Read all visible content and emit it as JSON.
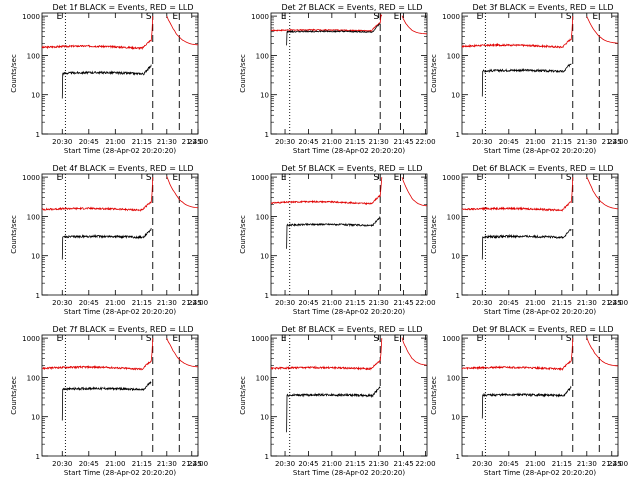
{
  "figure": {
    "series_names": [
      "BLACK = Events",
      "RED = LLD"
    ],
    "colors": {
      "events": "#000000",
      "lld": "#e00000",
      "axes": "#000000",
      "background": "#ffffff"
    }
  },
  "chart_data": [
    {
      "type": "line",
      "title": "Det 1f BLACK = Events, RED = LLD",
      "xlabel": "Start Time (28-Apr-02 20:20:20)",
      "ylabel": "Counts/sec",
      "yscale": "log",
      "ylim": [
        1,
        1200
      ],
      "xlim": [
        0,
        100
      ],
      "xticks": [
        {
          "v": 13,
          "label": "20:30"
        },
        {
          "v": 30,
          "label": "20:45"
        },
        {
          "v": 47,
          "label": "21:00"
        },
        {
          "v": 64,
          "label": "21:15"
        },
        {
          "v": 80,
          "label": "21:30"
        },
        {
          "v": 96,
          "label": "21:45"
        },
        {
          "v": 100,
          "label": "22:00"
        }
      ],
      "yticks": [
        {
          "v": 1,
          "label": "1"
        },
        {
          "v": 10,
          "label": "10"
        },
        {
          "v": 100,
          "label": "100"
        },
        {
          "v": 1000,
          "label": "1000"
        }
      ],
      "markers": [
        {
          "x": 15,
          "style": "dotted",
          "label": "E"
        },
        {
          "x": 71,
          "style": "dashed",
          "label": "S"
        },
        {
          "x": 88,
          "style": "dashed",
          "label": "E"
        }
      ],
      "series": [
        {
          "name": "Events",
          "start": 13,
          "end": 70,
          "base": 35,
          "first": 8
        },
        {
          "name": "LLD",
          "start": 0,
          "end": 70,
          "base": 160
        }
      ],
      "recovery": {
        "start": 80,
        "end": 100,
        "peak": 1000,
        "lld_end": 180
      },
      "noise": 0.05,
      "hump": 0.1
    },
    {
      "type": "line",
      "title": "Det 2f BLACK = Events, RED = LLD",
      "xlabel": "Start Time (28-Apr-02 20:20:20)",
      "ylabel": "Counts/sec",
      "yscale": "log",
      "ylim": [
        1,
        1200
      ],
      "xlim": [
        0,
        100
      ],
      "xticks": [
        {
          "v": 9,
          "label": "20:30"
        },
        {
          "v": 24,
          "label": "20:45"
        },
        {
          "v": 39,
          "label": "21:00"
        },
        {
          "v": 54,
          "label": "21:15"
        },
        {
          "v": 69,
          "label": "21:30"
        },
        {
          "v": 85,
          "label": "21:45"
        },
        {
          "v": 99,
          "label": "22:00"
        }
      ],
      "yticks": [
        {
          "v": 1,
          "label": "1"
        },
        {
          "v": 10,
          "label": "10"
        },
        {
          "v": 100,
          "label": "100"
        },
        {
          "v": 1000,
          "label": "1000"
        }
      ],
      "markers": [
        {
          "x": 12,
          "style": "dotted",
          "label": "E"
        },
        {
          "x": 70,
          "style": "dashed",
          "label": "S"
        },
        {
          "x": 83,
          "style": "dashed",
          "label": "E"
        }
      ],
      "series": [
        {
          "name": "Events",
          "start": 10,
          "end": 70,
          "base": 400,
          "first": 180
        },
        {
          "name": "LLD",
          "start": 0,
          "end": 70,
          "base": 430
        }
      ],
      "recovery": {
        "start": 84,
        "end": 100,
        "peak": 1000,
        "lld_end": 350
      },
      "noise": 0.03,
      "hump": 0.05
    },
    {
      "type": "line",
      "title": "Det 3f BLACK = Events, RED = LLD",
      "xlabel": "Start Time (28-Apr-02 20:20:20)",
      "ylabel": "Counts/sec",
      "yscale": "log",
      "ylim": [
        1,
        1200
      ],
      "xlim": [
        0,
        100
      ],
      "xticks": [
        {
          "v": 13,
          "label": "20:30"
        },
        {
          "v": 30,
          "label": "20:45"
        },
        {
          "v": 47,
          "label": "21:00"
        },
        {
          "v": 64,
          "label": "21:15"
        },
        {
          "v": 80,
          "label": "21:30"
        },
        {
          "v": 96,
          "label": "21:45"
        },
        {
          "v": 100,
          "label": "22:00"
        }
      ],
      "yticks": [
        {
          "v": 1,
          "label": "1"
        },
        {
          "v": 10,
          "label": "10"
        },
        {
          "v": 100,
          "label": "100"
        },
        {
          "v": 1000,
          "label": "1000"
        }
      ],
      "markers": [
        {
          "x": 15,
          "style": "dotted",
          "label": "E"
        },
        {
          "x": 71,
          "style": "dashed",
          "label": "S"
        },
        {
          "x": 88,
          "style": "dashed",
          "label": "E"
        }
      ],
      "series": [
        {
          "name": "Events",
          "start": 13,
          "end": 70,
          "base": 40,
          "first": 9
        },
        {
          "name": "LLD",
          "start": 0,
          "end": 70,
          "base": 170
        }
      ],
      "recovery": {
        "start": 80,
        "end": 100,
        "peak": 1000,
        "lld_end": 200
      },
      "noise": 0.05,
      "hump": 0.1
    },
    {
      "type": "line",
      "title": "Det 4f BLACK = Events, RED = LLD",
      "xlabel": "Start Time (28-Apr-02 20:20:20)",
      "ylabel": "Counts/sec",
      "yscale": "log",
      "ylim": [
        1,
        1200
      ],
      "xlim": [
        0,
        100
      ],
      "xticks": [
        {
          "v": 13,
          "label": "20:30"
        },
        {
          "v": 30,
          "label": "20:45"
        },
        {
          "v": 47,
          "label": "21:00"
        },
        {
          "v": 64,
          "label": "21:15"
        },
        {
          "v": 80,
          "label": "21:30"
        },
        {
          "v": 96,
          "label": "21:45"
        },
        {
          "v": 100,
          "label": "22:00"
        }
      ],
      "yticks": [
        {
          "v": 1,
          "label": "1"
        },
        {
          "v": 10,
          "label": "10"
        },
        {
          "v": 100,
          "label": "100"
        },
        {
          "v": 1000,
          "label": "1000"
        }
      ],
      "markers": [
        {
          "x": 15,
          "style": "dotted",
          "label": "E"
        },
        {
          "x": 71,
          "style": "dashed",
          "label": "S"
        },
        {
          "x": 88,
          "style": "dashed",
          "label": "E"
        }
      ],
      "series": [
        {
          "name": "Events",
          "start": 13,
          "end": 70,
          "base": 30,
          "first": 8
        },
        {
          "name": "LLD",
          "start": 0,
          "end": 70,
          "base": 150
        }
      ],
      "recovery": {
        "start": 80,
        "end": 100,
        "peak": 1000,
        "lld_end": 160
      },
      "noise": 0.05,
      "hump": 0.08
    },
    {
      "type": "line",
      "title": "Det 5f BLACK = Events, RED = LLD",
      "xlabel": "Start Time (28-Apr-02 20:20:20)",
      "ylabel": "Counts/sec",
      "yscale": "log",
      "ylim": [
        1,
        1200
      ],
      "xlim": [
        0,
        100
      ],
      "xticks": [
        {
          "v": 9,
          "label": "20:30"
        },
        {
          "v": 24,
          "label": "20:45"
        },
        {
          "v": 39,
          "label": "21:00"
        },
        {
          "v": 54,
          "label": "21:15"
        },
        {
          "v": 69,
          "label": "21:30"
        },
        {
          "v": 85,
          "label": "21:45"
        },
        {
          "v": 99,
          "label": "22:00"
        }
      ],
      "yticks": [
        {
          "v": 1,
          "label": "1"
        },
        {
          "v": 10,
          "label": "10"
        },
        {
          "v": 100,
          "label": "100"
        },
        {
          "v": 1000,
          "label": "1000"
        }
      ],
      "markers": [
        {
          "x": 12,
          "style": "dotted",
          "label": "E"
        },
        {
          "x": 70,
          "style": "dashed",
          "label": "S"
        },
        {
          "x": 83,
          "style": "dashed",
          "label": "E"
        }
      ],
      "series": [
        {
          "name": "Events",
          "start": 10,
          "end": 70,
          "base": 60,
          "first": 15
        },
        {
          "name": "LLD",
          "start": 0,
          "end": 70,
          "base": 220
        }
      ],
      "recovery": {
        "start": 84,
        "end": 100,
        "peak": 1000,
        "lld_end": 180
      },
      "noise": 0.04,
      "hump": 0.1
    },
    {
      "type": "line",
      "title": "Det 6f BLACK = Events, RED = LLD",
      "xlabel": "Start Time (28-Apr-02 20:20:20)",
      "ylabel": "Counts/sec",
      "yscale": "log",
      "ylim": [
        1,
        1200
      ],
      "xlim": [
        0,
        100
      ],
      "xticks": [
        {
          "v": 13,
          "label": "20:30"
        },
        {
          "v": 30,
          "label": "20:45"
        },
        {
          "v": 47,
          "label": "21:00"
        },
        {
          "v": 64,
          "label": "21:15"
        },
        {
          "v": 80,
          "label": "21:30"
        },
        {
          "v": 96,
          "label": "21:45"
        },
        {
          "v": 100,
          "label": "22:00"
        }
      ],
      "yticks": [
        {
          "v": 1,
          "label": "1"
        },
        {
          "v": 10,
          "label": "10"
        },
        {
          "v": 100,
          "label": "100"
        },
        {
          "v": 1000,
          "label": "1000"
        }
      ],
      "markers": [
        {
          "x": 15,
          "style": "dotted",
          "label": "E"
        },
        {
          "x": 71,
          "style": "dashed",
          "label": "S"
        },
        {
          "x": 88,
          "style": "dashed",
          "label": "E"
        }
      ],
      "series": [
        {
          "name": "Events",
          "start": 13,
          "end": 70,
          "base": 30,
          "first": 8
        },
        {
          "name": "LLD",
          "start": 0,
          "end": 70,
          "base": 150
        }
      ],
      "recovery": {
        "start": 80,
        "end": 100,
        "peak": 1000,
        "lld_end": 150
      },
      "noise": 0.05,
      "hump": 0.08
    },
    {
      "type": "line",
      "title": "Det 7f BLACK = Events, RED = LLD",
      "xlabel": "Start Time (28-Apr-02 20:20:20)",
      "ylabel": "Counts/sec",
      "yscale": "log",
      "ylim": [
        1,
        1200
      ],
      "xlim": [
        0,
        100
      ],
      "xticks": [
        {
          "v": 13,
          "label": "20:30"
        },
        {
          "v": 30,
          "label": "20:45"
        },
        {
          "v": 47,
          "label": "21:00"
        },
        {
          "v": 64,
          "label": "21:15"
        },
        {
          "v": 80,
          "label": "21:30"
        },
        {
          "v": 96,
          "label": "21:45"
        },
        {
          "v": 100,
          "label": "22:00"
        }
      ],
      "yticks": [
        {
          "v": 1,
          "label": "1"
        },
        {
          "v": 10,
          "label": "10"
        },
        {
          "v": 100,
          "label": "100"
        },
        {
          "v": 1000,
          "label": "1000"
        }
      ],
      "markers": [
        {
          "x": 15,
          "style": "dotted",
          "label": "E"
        },
        {
          "x": 71,
          "style": "dashed",
          "label": "S"
        },
        {
          "x": 88,
          "style": "dashed",
          "label": "E"
        }
      ],
      "series": [
        {
          "name": "Events",
          "start": 13,
          "end": 70,
          "base": 50,
          "first": 8
        },
        {
          "name": "LLD",
          "start": 0,
          "end": 70,
          "base": 170
        }
      ],
      "recovery": {
        "start": 80,
        "end": 100,
        "peak": 1000,
        "lld_end": 180
      },
      "noise": 0.05,
      "hump": 0.1
    },
    {
      "type": "line",
      "title": "Det 8f BLACK = Events, RED = LLD",
      "xlabel": "Start Time (28-Apr-02 20:20:20)",
      "ylabel": "Counts/sec",
      "yscale": "log",
      "ylim": [
        1,
        1200
      ],
      "xlim": [
        0,
        100
      ],
      "xticks": [
        {
          "v": 9,
          "label": "20:30"
        },
        {
          "v": 24,
          "label": "20:45"
        },
        {
          "v": 39,
          "label": "21:00"
        },
        {
          "v": 54,
          "label": "21:15"
        },
        {
          "v": 69,
          "label": "21:30"
        },
        {
          "v": 85,
          "label": "21:45"
        },
        {
          "v": 99,
          "label": "22:00"
        }
      ],
      "yticks": [
        {
          "v": 1,
          "label": "1"
        },
        {
          "v": 10,
          "label": "10"
        },
        {
          "v": 100,
          "label": "100"
        },
        {
          "v": 1000,
          "label": "1000"
        }
      ],
      "markers": [
        {
          "x": 12,
          "style": "dotted",
          "label": "E"
        },
        {
          "x": 70,
          "style": "dashed",
          "label": "S"
        },
        {
          "x": 83,
          "style": "dashed",
          "label": "E"
        }
      ],
      "series": [
        {
          "name": "Events",
          "start": 10,
          "end": 70,
          "base": 35,
          "first": 4
        },
        {
          "name": "LLD",
          "start": 0,
          "end": 70,
          "base": 170
        }
      ],
      "recovery": {
        "start": 84,
        "end": 100,
        "peak": 1000,
        "lld_end": 200
      },
      "noise": 0.05,
      "hump": 0.06
    },
    {
      "type": "line",
      "title": "Det 9f BLACK = Events, RED = LLD",
      "xlabel": "Start Time (28-Apr-02 20:20:20)",
      "ylabel": "Counts/sec",
      "yscale": "log",
      "ylim": [
        1,
        1200
      ],
      "xlim": [
        0,
        100
      ],
      "xticks": [
        {
          "v": 13,
          "label": "20:30"
        },
        {
          "v": 30,
          "label": "20:45"
        },
        {
          "v": 47,
          "label": "21:00"
        },
        {
          "v": 64,
          "label": "21:15"
        },
        {
          "v": 80,
          "label": "21:30"
        },
        {
          "v": 96,
          "label": "21:45"
        },
        {
          "v": 100,
          "label": "22:00"
        }
      ],
      "yticks": [
        {
          "v": 1,
          "label": "1"
        },
        {
          "v": 10,
          "label": "10"
        },
        {
          "v": 100,
          "label": "100"
        },
        {
          "v": 1000,
          "label": "1000"
        }
      ],
      "markers": [
        {
          "x": 15,
          "style": "dotted",
          "label": "E"
        },
        {
          "x": 71,
          "style": "dashed",
          "label": "S"
        },
        {
          "x": 88,
          "style": "dashed",
          "label": "E"
        }
      ],
      "series": [
        {
          "name": "Events",
          "start": 13,
          "end": 70,
          "base": 35,
          "first": 9
        },
        {
          "name": "LLD",
          "start": 0,
          "end": 70,
          "base": 170
        }
      ],
      "recovery": {
        "start": 80,
        "end": 100,
        "peak": 1000,
        "lld_end": 190
      },
      "noise": 0.05,
      "hump": 0.08
    }
  ]
}
